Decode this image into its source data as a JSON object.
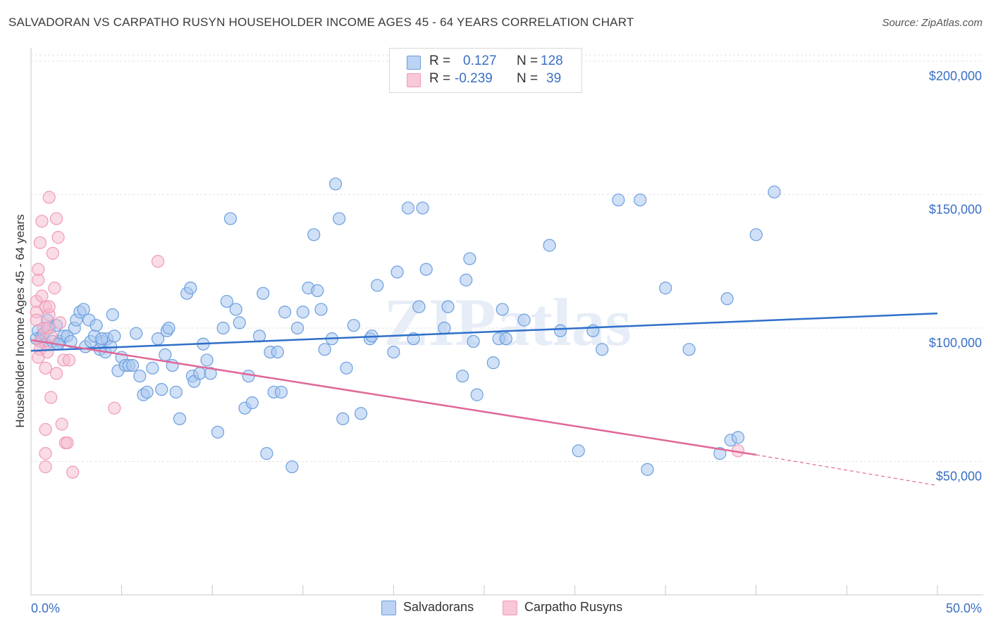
{
  "title": "SALVADORAN VS CARPATHO RUSYN HOUSEHOLDER INCOME AGES 45 - 64 YEARS CORRELATION CHART",
  "source": "Source: ZipAtlas.com",
  "watermark": "ZIPatlas",
  "legend": {
    "rows": [
      {
        "r_label": "R =",
        "r_value": "0.127",
        "n_label": "N =",
        "n_value": "128"
      },
      {
        "r_label": "R =",
        "r_value": "-0.239",
        "n_label": "N =",
        "n_value": "39"
      }
    ]
  },
  "chart_data": {
    "type": "scatter",
    "xlabel": "",
    "ylabel": "Householder Income Ages 45 - 64 years",
    "xlim": [
      0,
      50
    ],
    "ylim": [
      0,
      205000
    ],
    "x_tick_labels": [
      "0.0%",
      "50.0%"
    ],
    "y_ticks": [
      50000,
      100000,
      150000,
      200000
    ],
    "y_tick_labels": [
      "$50,000",
      "$100,000",
      "$150,000",
      "$200,000"
    ],
    "grid": true,
    "legend_position": "bottom",
    "colors": {
      "blue": "#6b9fe0",
      "blue_line": "#2f6fc9",
      "pink": "#f09ab8",
      "pink_line": "#e06898",
      "axis_text": "#3a6fc4"
    },
    "series": [
      {
        "name": "Salvadorans",
        "color": "#6b9fe0",
        "trend": {
          "x": [
            0,
            50
          ],
          "y": [
            91500,
            105500
          ]
        },
        "points": [
          [
            0.3,
            96000
          ],
          [
            0.4,
            99000
          ],
          [
            0.5,
            95000
          ],
          [
            0.6,
            97000
          ],
          [
            0.7,
            98000
          ],
          [
            0.8,
            94000
          ],
          [
            0.9,
            103000
          ],
          [
            1.0,
            100000
          ],
          [
            1.2,
            95000
          ],
          [
            1.4,
            101000
          ],
          [
            1.6,
            95000
          ],
          [
            1.8,
            97000
          ],
          [
            2.0,
            97000
          ],
          [
            2.2,
            95000
          ],
          [
            2.4,
            100000
          ],
          [
            2.5,
            103000
          ],
          [
            2.7,
            106000
          ],
          [
            2.9,
            107000
          ],
          [
            3.0,
            93000
          ],
          [
            3.2,
            103000
          ],
          [
            3.3,
            95000
          ],
          [
            3.5,
            97000
          ],
          [
            3.6,
            101000
          ],
          [
            3.8,
            92000
          ],
          [
            3.9,
            95000
          ],
          [
            4.1,
            91000
          ],
          [
            4.2,
            96000
          ],
          [
            4.4,
            93000
          ],
          [
            4.5,
            105000
          ],
          [
            4.6,
            97000
          ],
          [
            4.8,
            84000
          ],
          [
            5.0,
            89000
          ],
          [
            5.2,
            86000
          ],
          [
            5.4,
            86000
          ],
          [
            5.6,
            86000
          ],
          [
            5.8,
            98000
          ],
          [
            6.0,
            82000
          ],
          [
            6.2,
            75000
          ],
          [
            6.4,
            76000
          ],
          [
            6.7,
            85000
          ],
          [
            7.0,
            96000
          ],
          [
            7.2,
            77000
          ],
          [
            7.4,
            90000
          ],
          [
            7.5,
            99000
          ],
          [
            7.6,
            100000
          ],
          [
            7.8,
            86000
          ],
          [
            8.0,
            76000
          ],
          [
            8.2,
            66000
          ],
          [
            8.6,
            113000
          ],
          [
            8.8,
            115000
          ],
          [
            8.9,
            82000
          ],
          [
            9.0,
            80000
          ],
          [
            9.3,
            83000
          ],
          [
            9.5,
            94000
          ],
          [
            9.7,
            88000
          ],
          [
            9.9,
            83000
          ],
          [
            10.3,
            61000
          ],
          [
            10.6,
            100000
          ],
          [
            10.8,
            110000
          ],
          [
            11.0,
            141000
          ],
          [
            11.3,
            107000
          ],
          [
            11.5,
            102000
          ],
          [
            11.8,
            70000
          ],
          [
            12.0,
            82000
          ],
          [
            12.2,
            72000
          ],
          [
            12.6,
            97000
          ],
          [
            12.8,
            113000
          ],
          [
            13.0,
            53000
          ],
          [
            13.2,
            91000
          ],
          [
            13.4,
            76000
          ],
          [
            13.6,
            91000
          ],
          [
            13.8,
            76000
          ],
          [
            14.0,
            106000
          ],
          [
            14.4,
            48000
          ],
          [
            14.7,
            100000
          ],
          [
            15.0,
            106000
          ],
          [
            15.3,
            115000
          ],
          [
            15.6,
            135000
          ],
          [
            15.8,
            114000
          ],
          [
            16.0,
            107000
          ],
          [
            16.2,
            92000
          ],
          [
            16.6,
            96000
          ],
          [
            16.8,
            154000
          ],
          [
            17.0,
            141000
          ],
          [
            17.2,
            66000
          ],
          [
            17.4,
            85000
          ],
          [
            17.8,
            101000
          ],
          [
            18.2,
            68000
          ],
          [
            18.7,
            96000
          ],
          [
            18.8,
            97000
          ],
          [
            19.1,
            116000
          ],
          [
            20.0,
            91000
          ],
          [
            20.2,
            121000
          ],
          [
            20.8,
            145000
          ],
          [
            21.1,
            96000
          ],
          [
            21.4,
            108000
          ],
          [
            21.6,
            145000
          ],
          [
            21.8,
            122000
          ],
          [
            22.8,
            100000
          ],
          [
            23.0,
            108000
          ],
          [
            23.8,
            82000
          ],
          [
            24.0,
            118000
          ],
          [
            24.2,
            126000
          ],
          [
            24.4,
            95000
          ],
          [
            24.6,
            75000
          ],
          [
            25.5,
            87000
          ],
          [
            25.8,
            96000
          ],
          [
            26.0,
            107000
          ],
          [
            26.2,
            96000
          ],
          [
            27.2,
            103000
          ],
          [
            28.6,
            131000
          ],
          [
            30.2,
            54000
          ],
          [
            31.0,
            99000
          ],
          [
            32.4,
            148000
          ],
          [
            33.6,
            148000
          ],
          [
            34.0,
            47000
          ],
          [
            35.0,
            115000
          ],
          [
            38.0,
            53000
          ],
          [
            38.4,
            111000
          ],
          [
            38.6,
            58000
          ],
          [
            39.0,
            59000
          ],
          [
            40.0,
            135000
          ],
          [
            41.0,
            151000
          ],
          [
            29.2,
            99000
          ],
          [
            31.5,
            92000
          ],
          [
            36.3,
            92000
          ],
          [
            3.9,
            96000
          ],
          [
            1.5,
            94000
          ]
        ]
      },
      {
        "name": "Carpatho Rusyns",
        "color": "#f09ab8",
        "trend": {
          "x": [
            0,
            40
          ],
          "y": [
            95500,
            52500
          ]
        },
        "trend_dashed": {
          "x": [
            40,
            50
          ],
          "y": [
            52500,
            41000
          ]
        },
        "points": [
          [
            0.3,
            106000
          ],
          [
            0.3,
            110000
          ],
          [
            0.3,
            103000
          ],
          [
            0.4,
            118000
          ],
          [
            0.4,
            122000
          ],
          [
            0.5,
            132000
          ],
          [
            0.5,
            95000
          ],
          [
            0.5,
            92000
          ],
          [
            0.6,
            112000
          ],
          [
            0.6,
            140000
          ],
          [
            0.7,
            100000
          ],
          [
            0.8,
            108000
          ],
          [
            0.8,
            85000
          ],
          [
            0.8,
            62000
          ],
          [
            0.8,
            53000
          ],
          [
            0.8,
            48000
          ],
          [
            0.9,
            100000
          ],
          [
            0.9,
            91000
          ],
          [
            1.0,
            105000
          ],
          [
            1.0,
            108000
          ],
          [
            1.0,
            149000
          ],
          [
            1.1,
            97000
          ],
          [
            1.2,
            128000
          ],
          [
            1.3,
            115000
          ],
          [
            1.4,
            141000
          ],
          [
            1.4,
            83000
          ],
          [
            1.5,
            134000
          ],
          [
            1.6,
            102000
          ],
          [
            1.7,
            64000
          ],
          [
            1.8,
            88000
          ],
          [
            1.9,
            57000
          ],
          [
            2.0,
            57000
          ],
          [
            2.1,
            88000
          ],
          [
            2.3,
            46000
          ],
          [
            1.1,
            74000
          ],
          [
            4.6,
            70000
          ],
          [
            7.0,
            125000
          ],
          [
            39.0,
            54000
          ],
          [
            0.4,
            89000
          ]
        ]
      }
    ]
  }
}
